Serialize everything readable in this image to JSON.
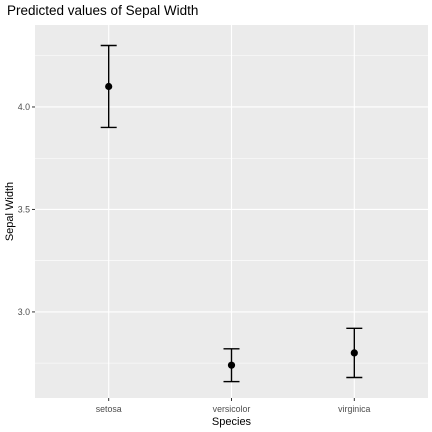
{
  "chart_data": {
    "type": "scatter",
    "title": "Predicted values of Sepal Width",
    "xlabel": "Species",
    "ylabel": "Sepal Width",
    "categories": [
      "setosa",
      "versicolor",
      "virginica"
    ],
    "series": [
      {
        "values": [
          4.1,
          2.74,
          2.8
        ],
        "lower": [
          3.9,
          2.66,
          2.68
        ],
        "upper": [
          4.3,
          2.82,
          2.92
        ]
      }
    ],
    "yticks": [
      3.0,
      3.5,
      4.0
    ],
    "ytick_labels": [
      "3.0",
      "3.5",
      "4.0"
    ],
    "ylim": [
      2.58,
      4.4
    ],
    "grid": true,
    "colors": {
      "panel": "#EBEBEB",
      "grid": "#FFFFFF",
      "marks": "#000000",
      "tick_text": "#4D4D4D"
    }
  }
}
